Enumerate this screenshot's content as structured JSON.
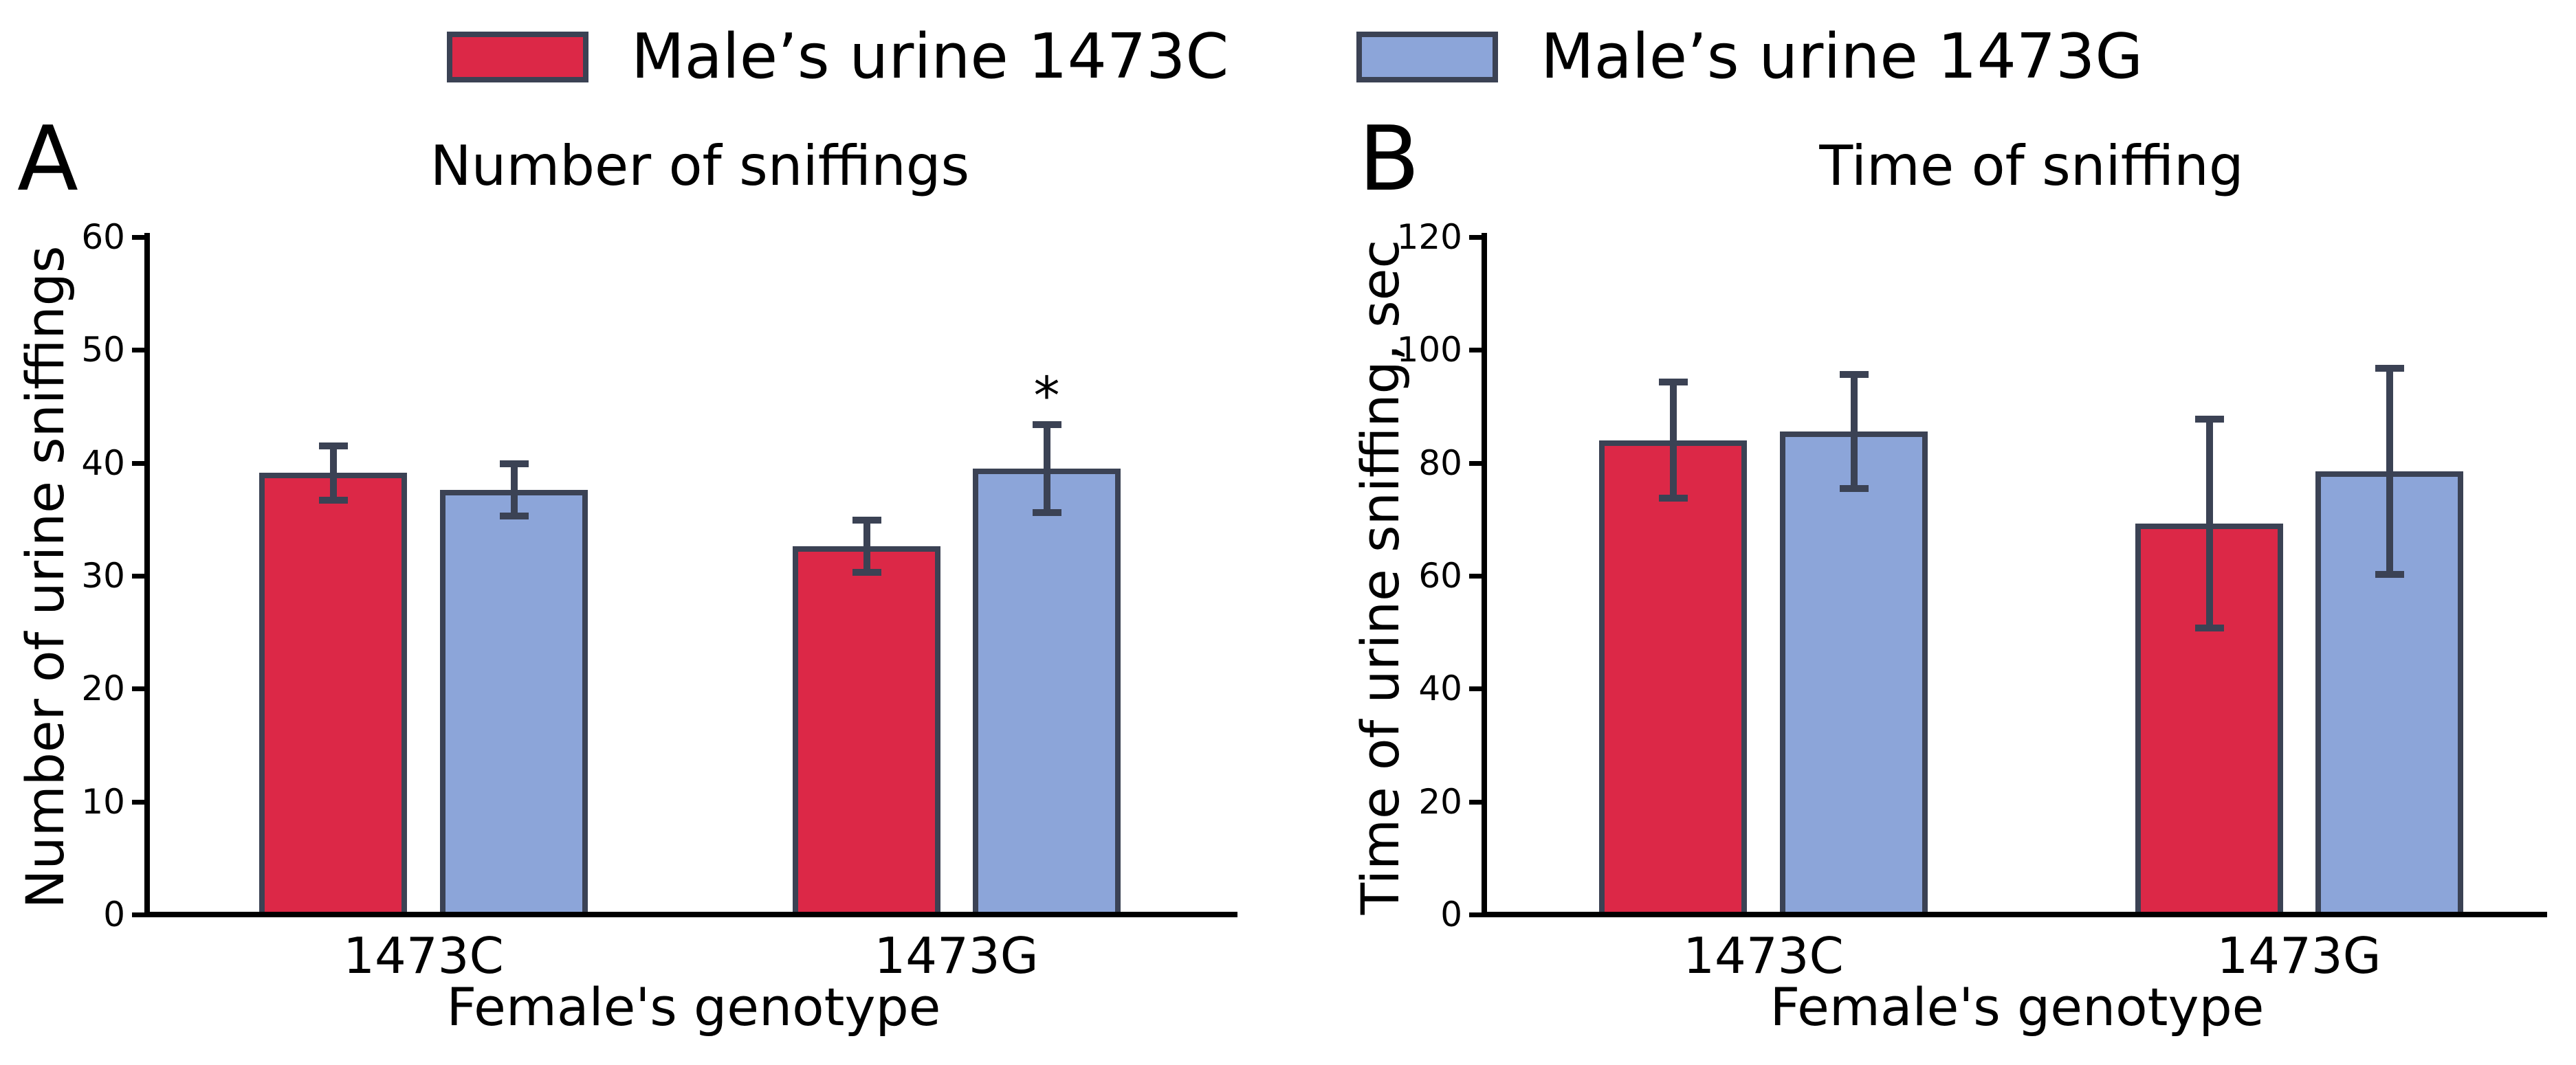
{
  "figure": {
    "background": "#ffffff",
    "axis_color": "#000000",
    "bar_edge_color": "#3B4254",
    "error_bar_color": "#3B4254",
    "legend": {
      "items": [
        {
          "label": "Male’s urine 1473C",
          "color": "#DC2847",
          "edge": "#3B4254"
        },
        {
          "label": "Male’s urine 1473G",
          "color": "#8CA5D9",
          "edge": "#3B4254"
        }
      ]
    }
  },
  "chart_data": [
    {
      "type": "bar",
      "panel": "A",
      "title": "Number of sniffings",
      "xlabel": "Female's genotype",
      "ylabel": "Number of urine sniffings",
      "categories": [
        "1473C",
        "1473G"
      ],
      "series": [
        {
          "name": "Male’s urine 1473C",
          "color": "#DC2847",
          "values": [
            39.1,
            32.6
          ],
          "errors": [
            2.4,
            2.3
          ]
        },
        {
          "name": "Male’s urine 1473G",
          "color": "#8CA5D9",
          "values": [
            37.6,
            39.5
          ],
          "errors": [
            2.3,
            3.9
          ]
        }
      ],
      "ylim": [
        0,
        60
      ],
      "yticks": [
        0,
        10,
        20,
        30,
        40,
        50,
        60
      ],
      "grid": false,
      "legend_position": "top",
      "annotations": [
        {
          "text": "*",
          "category": "1473G",
          "series": "Male’s urine 1473G",
          "y": 46.6
        }
      ]
    },
    {
      "type": "bar",
      "panel": "B",
      "title": "Time of sniffing",
      "xlabel": "Female's genotype",
      "ylabel": "Time of urine sniffing, sec",
      "categories": [
        "1473C",
        "1473G"
      ],
      "series": [
        {
          "name": "Male’s urine 1473C",
          "color": "#DC2847",
          "values": [
            84.0,
            69.2
          ],
          "errors": [
            10.3,
            18.5
          ]
        },
        {
          "name": "Male’s urine 1473G",
          "color": "#8CA5D9",
          "values": [
            85.6,
            78.5
          ],
          "errors": [
            10.1,
            18.2
          ]
        }
      ],
      "ylim": [
        0,
        120
      ],
      "yticks": [
        0,
        20,
        40,
        60,
        80,
        100,
        120
      ],
      "grid": false,
      "legend_position": "top",
      "annotations": []
    }
  ]
}
